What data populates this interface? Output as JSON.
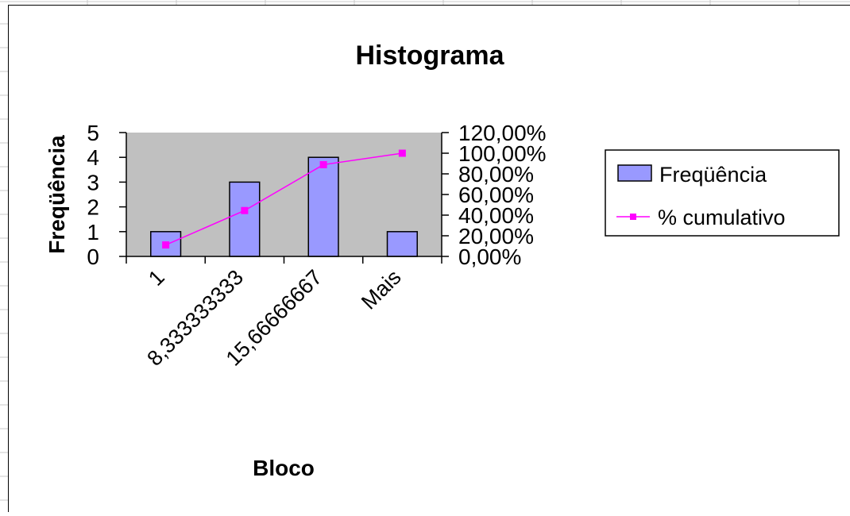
{
  "chart_data": {
    "type": "bar",
    "title": "Histograma",
    "xlabel": "Bloco",
    "ylabel": "Freqüência",
    "categories": [
      "1",
      "8,333333333",
      "15,66666667",
      "Mais"
    ],
    "series": [
      {
        "name": "Freqüência",
        "type": "bar",
        "axis": "primary",
        "values": [
          1,
          3,
          4,
          1
        ],
        "color": "#9999ff"
      },
      {
        "name": "% cumulativo",
        "type": "line",
        "axis": "secondary",
        "values": [
          11.11,
          44.44,
          88.89,
          100.0
        ],
        "color": "#ff00ff"
      }
    ],
    "ylim": [
      0,
      5
    ],
    "y_ticks": [
      "0",
      "1",
      "2",
      "3",
      "4",
      "5"
    ],
    "y2lim": [
      0,
      120
    ],
    "y2_ticks": [
      "0,00%",
      "20,00%",
      "40,00%",
      "60,00%",
      "80,00%",
      "100,00%",
      "120,00%"
    ],
    "plot_background": "#c0c0c0",
    "grid": false,
    "legend_position": "right"
  }
}
